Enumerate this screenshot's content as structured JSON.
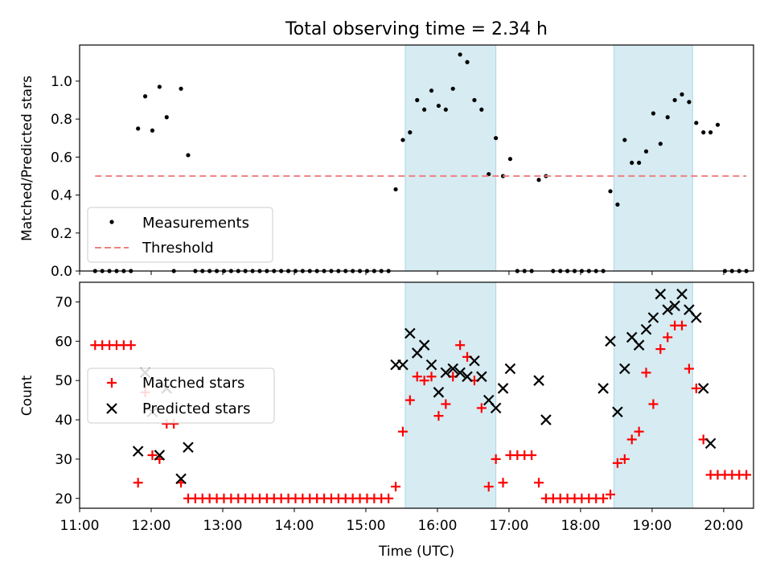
{
  "title": "Total observing time = 2.34 h",
  "xlabel": "Time (UTC)",
  "x_ticks": [
    "11:00",
    "12:00",
    "13:00",
    "14:00",
    "15:00",
    "16:00",
    "17:00",
    "18:00",
    "19:00",
    "20:00"
  ],
  "colors": {
    "shade": "#add8e6",
    "threshold": "#f08080",
    "matched": "#ff0000",
    "predicted": "#000000",
    "measurement": "#000000"
  },
  "chart_data": [
    {
      "type": "scatter",
      "panel": "top",
      "ylabel": "Matched/Predicted stars",
      "xlim": [
        "11:00",
        "20:25"
      ],
      "ylim": [
        0,
        1.19
      ],
      "y_ticks": [
        "0.0",
        "0.2",
        "0.4",
        "0.6",
        "0.8",
        "1.0"
      ],
      "shaded_intervals": [
        [
          "15:33",
          "16:49"
        ],
        [
          "18:28",
          "19:34"
        ]
      ],
      "legend": {
        "placement": "lower-left",
        "entries": [
          "Measurements",
          "Threshold"
        ]
      },
      "series": [
        {
          "name": "Measurements",
          "marker": "dot",
          "points": [
            [
              "11:13",
              0
            ],
            [
              "11:19",
              0
            ],
            [
              "11:25",
              0
            ],
            [
              "11:31",
              0
            ],
            [
              "11:37",
              0
            ],
            [
              "11:43",
              0
            ],
            [
              "11:49",
              0.75
            ],
            [
              "11:55",
              0.92
            ],
            [
              "12:01",
              0.74
            ],
            [
              "12:07",
              0.97
            ],
            [
              "12:13",
              0.81
            ],
            [
              "12:19",
              0
            ],
            [
              "12:25",
              0.96
            ],
            [
              "12:31",
              0.61
            ],
            [
              "12:37",
              0
            ],
            [
              "12:43",
              0
            ],
            [
              "12:49",
              0
            ],
            [
              "12:55",
              0
            ],
            [
              "13:01",
              0
            ],
            [
              "13:07",
              0
            ],
            [
              "13:13",
              0
            ],
            [
              "13:19",
              0
            ],
            [
              "13:25",
              0
            ],
            [
              "13:31",
              0
            ],
            [
              "13:37",
              0
            ],
            [
              "13:43",
              0
            ],
            [
              "13:49",
              0
            ],
            [
              "13:55",
              0
            ],
            [
              "14:01",
              0
            ],
            [
              "14:07",
              0
            ],
            [
              "14:13",
              0
            ],
            [
              "14:19",
              0
            ],
            [
              "14:25",
              0
            ],
            [
              "14:31",
              0
            ],
            [
              "14:37",
              0
            ],
            [
              "14:43",
              0
            ],
            [
              "14:49",
              0
            ],
            [
              "14:55",
              0
            ],
            [
              "15:01",
              0
            ],
            [
              "15:07",
              0
            ],
            [
              "15:13",
              0
            ],
            [
              "15:19",
              0
            ],
            [
              "15:25",
              0.43
            ],
            [
              "15:31",
              0.69
            ],
            [
              "15:37",
              0.73
            ],
            [
              "15:43",
              0.9
            ],
            [
              "15:49",
              0.85
            ],
            [
              "15:55",
              0.95
            ],
            [
              "16:01",
              0.87
            ],
            [
              "16:07",
              0.85
            ],
            [
              "16:13",
              0.96
            ],
            [
              "16:19",
              1.14
            ],
            [
              "16:25",
              1.1
            ],
            [
              "16:31",
              0.9
            ],
            [
              "16:37",
              0.85
            ],
            [
              "16:43",
              0.51
            ],
            [
              "16:49",
              0.7
            ],
            [
              "16:55",
              0.5
            ],
            [
              "17:01",
              0.59
            ],
            [
              "17:07",
              0
            ],
            [
              "17:13",
              0
            ],
            [
              "17:19",
              0
            ],
            [
              "17:25",
              0.48
            ],
            [
              "17:31",
              0.5
            ],
            [
              "17:37",
              0
            ],
            [
              "17:43",
              0
            ],
            [
              "17:49",
              0
            ],
            [
              "17:55",
              0
            ],
            [
              "18:01",
              0
            ],
            [
              "18:07",
              0
            ],
            [
              "18:13",
              0
            ],
            [
              "18:19",
              0
            ],
            [
              "18:25",
              0.42
            ],
            [
              "18:31",
              0.35
            ],
            [
              "18:37",
              0.69
            ],
            [
              "18:43",
              0.57
            ],
            [
              "18:49",
              0.57
            ],
            [
              "18:55",
              0.63
            ],
            [
              "19:01",
              0.83
            ],
            [
              "19:07",
              0.67
            ],
            [
              "19:13",
              0.81
            ],
            [
              "19:19",
              0.9
            ],
            [
              "19:25",
              0.93
            ],
            [
              "19:31",
              0.89
            ],
            [
              "19:37",
              0.78
            ],
            [
              "19:43",
              0.73
            ],
            [
              "19:49",
              0.73
            ],
            [
              "19:55",
              0.77
            ],
            [
              "20:01",
              0
            ],
            [
              "20:07",
              0
            ],
            [
              "20:13",
              0
            ],
            [
              "20:19",
              0
            ]
          ]
        },
        {
          "name": "Threshold",
          "style": "dashed",
          "points": [
            [
              "11:13",
              0.5
            ],
            [
              "20:19",
              0.5
            ]
          ]
        }
      ]
    },
    {
      "type": "scatter",
      "panel": "bottom",
      "ylabel": "Count",
      "xlim": [
        "11:00",
        "20:25"
      ],
      "ylim": [
        17.5,
        75
      ],
      "y_ticks": [
        "20",
        "30",
        "40",
        "50",
        "60",
        "70"
      ],
      "shaded_intervals": [
        [
          "15:33",
          "16:49"
        ],
        [
          "18:28",
          "19:34"
        ]
      ],
      "legend": {
        "placement": "center-left",
        "entries": [
          "Matched stars",
          "Predicted stars"
        ]
      },
      "series": [
        {
          "name": "Matched stars",
          "marker": "plus",
          "points": [
            [
              "11:13",
              59
            ],
            [
              "11:19",
              59
            ],
            [
              "11:25",
              59
            ],
            [
              "11:31",
              59
            ],
            [
              "11:37",
              59
            ],
            [
              "11:43",
              59
            ],
            [
              "11:49",
              24
            ],
            [
              "11:55",
              47
            ],
            [
              "12:01",
              31
            ],
            [
              "12:07",
              30
            ],
            [
              "12:13",
              39
            ],
            [
              "12:19",
              39
            ],
            [
              "12:25",
              24
            ],
            [
              "12:31",
              20
            ],
            [
              "12:37",
              20
            ],
            [
              "12:43",
              20
            ],
            [
              "12:49",
              20
            ],
            [
              "12:55",
              20
            ],
            [
              "13:01",
              20
            ],
            [
              "13:07",
              20
            ],
            [
              "13:13",
              20
            ],
            [
              "13:19",
              20
            ],
            [
              "13:25",
              20
            ],
            [
              "13:31",
              20
            ],
            [
              "13:37",
              20
            ],
            [
              "13:43",
              20
            ],
            [
              "13:49",
              20
            ],
            [
              "13:55",
              20
            ],
            [
              "14:01",
              20
            ],
            [
              "14:07",
              20
            ],
            [
              "14:13",
              20
            ],
            [
              "14:19",
              20
            ],
            [
              "14:25",
              20
            ],
            [
              "14:31",
              20
            ],
            [
              "14:37",
              20
            ],
            [
              "14:43",
              20
            ],
            [
              "14:49",
              20
            ],
            [
              "14:55",
              20
            ],
            [
              "15:01",
              20
            ],
            [
              "15:07",
              20
            ],
            [
              "15:13",
              20
            ],
            [
              "15:19",
              20
            ],
            [
              "15:25",
              23
            ],
            [
              "15:31",
              37
            ],
            [
              "15:37",
              45
            ],
            [
              "15:43",
              51
            ],
            [
              "15:49",
              50
            ],
            [
              "15:55",
              51
            ],
            [
              "16:01",
              41
            ],
            [
              "16:07",
              44
            ],
            [
              "16:13",
              51
            ],
            [
              "16:19",
              59
            ],
            [
              "16:25",
              56
            ],
            [
              "16:31",
              50
            ],
            [
              "16:37",
              43
            ],
            [
              "16:43",
              23
            ],
            [
              "16:49",
              30
            ],
            [
              "16:55",
              24
            ],
            [
              "17:01",
              31
            ],
            [
              "17:07",
              31
            ],
            [
              "17:13",
              31
            ],
            [
              "17:19",
              31
            ],
            [
              "17:25",
              24
            ],
            [
              "17:31",
              20
            ],
            [
              "17:37",
              20
            ],
            [
              "17:43",
              20
            ],
            [
              "17:49",
              20
            ],
            [
              "17:55",
              20
            ],
            [
              "18:01",
              20
            ],
            [
              "18:07",
              20
            ],
            [
              "18:13",
              20
            ],
            [
              "18:19",
              20
            ],
            [
              "18:25",
              21
            ],
            [
              "18:31",
              29
            ],
            [
              "18:37",
              30
            ],
            [
              "18:43",
              35
            ],
            [
              "18:49",
              37
            ],
            [
              "18:55",
              52
            ],
            [
              "19:01",
              44
            ],
            [
              "19:07",
              58
            ],
            [
              "19:13",
              61
            ],
            [
              "19:19",
              64
            ],
            [
              "19:25",
              64
            ],
            [
              "19:31",
              53
            ],
            [
              "19:37",
              48
            ],
            [
              "19:43",
              35
            ],
            [
              "19:49",
              26
            ],
            [
              "19:55",
              26
            ],
            [
              "20:01",
              26
            ],
            [
              "20:07",
              26
            ],
            [
              "20:13",
              26
            ],
            [
              "20:19",
              26
            ]
          ]
        },
        {
          "name": "Predicted stars",
          "marker": "x",
          "points": [
            [
              "11:49",
              32
            ],
            [
              "11:55",
              52
            ],
            [
              "12:01",
              42
            ],
            [
              "12:07",
              31
            ],
            [
              "12:13",
              48
            ],
            [
              "12:25",
              25
            ],
            [
              "12:31",
              33
            ],
            [
              "15:25",
              54
            ],
            [
              "15:31",
              54
            ],
            [
              "15:37",
              62
            ],
            [
              "15:43",
              57
            ],
            [
              "15:49",
              59
            ],
            [
              "15:55",
              54
            ],
            [
              "16:01",
              47
            ],
            [
              "16:07",
              52
            ],
            [
              "16:13",
              53
            ],
            [
              "16:19",
              52
            ],
            [
              "16:25",
              51
            ],
            [
              "16:31",
              55
            ],
            [
              "16:37",
              51
            ],
            [
              "16:43",
              45
            ],
            [
              "16:49",
              43
            ],
            [
              "16:55",
              48
            ],
            [
              "17:01",
              53
            ],
            [
              "17:25",
              50
            ],
            [
              "17:31",
              40
            ],
            [
              "18:19",
              48
            ],
            [
              "18:25",
              60
            ],
            [
              "18:31",
              42
            ],
            [
              "18:37",
              53
            ],
            [
              "18:43",
              61
            ],
            [
              "18:49",
              59
            ],
            [
              "18:55",
              63
            ],
            [
              "19:01",
              66
            ],
            [
              "19:07",
              72
            ],
            [
              "19:13",
              68
            ],
            [
              "19:19",
              69
            ],
            [
              "19:25",
              72
            ],
            [
              "19:31",
              68
            ],
            [
              "19:37",
              66
            ],
            [
              "19:43",
              48
            ],
            [
              "19:49",
              34
            ]
          ]
        }
      ]
    }
  ]
}
